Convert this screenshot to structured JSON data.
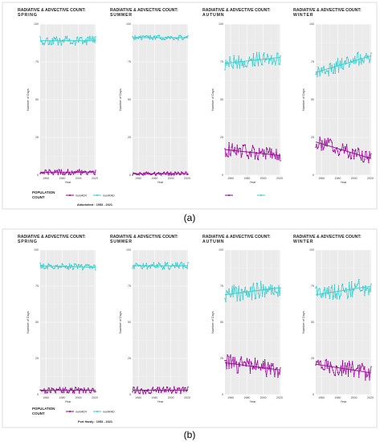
{
  "panels": [
    {
      "caption": "(a)",
      "credit": "Abbotsford : 1953 - 2021",
      "legend_title": [
        "POPULATION",
        "COUNT"
      ],
      "legend_items": [
        {
          "label": "numADV",
          "color": "#990099"
        },
        {
          "label": "numRAD",
          "color": "#33cccc"
        }
      ]
    },
    {
      "caption": "(b)",
      "credit": "Port Hardy : 1953 - 2021",
      "legend_title": [
        "POPULATION",
        "COUNT"
      ],
      "legend_items": [
        {
          "label": "numADV",
          "color": "#990099"
        },
        {
          "label": "numRAD",
          "color": "#33cccc"
        }
      ]
    }
  ],
  "chart_data": [
    {
      "type": "line",
      "panel": 0,
      "title": [
        "RADIATIVE & ADVECTIVE COUNT:",
        "SPRING"
      ],
      "xlabel": "Year",
      "ylabel": "Number of Days",
      "xlim": [
        1953,
        2021
      ],
      "ylim": [
        0,
        100
      ],
      "xticks": [
        1960,
        1980,
        2000,
        2020
      ],
      "yticks": [
        0,
        25,
        50,
        75,
        100
      ],
      "series": [
        {
          "name": "numRAD",
          "color": "#33cccc",
          "mean": 89,
          "trend": [
            89,
            89
          ],
          "amp": 3
        },
        {
          "name": "numADV",
          "color": "#990099",
          "mean": 2,
          "trend": [
            2,
            2
          ],
          "amp": 1.8
        }
      ]
    },
    {
      "type": "line",
      "panel": 0,
      "title": [
        "RADIATIVE & ADVECTIVE COUNT:",
        "SUMMER"
      ],
      "xlabel": "Year",
      "ylabel": "Number of Days",
      "xlim": [
        1953,
        2021
      ],
      "ylim": [
        0,
        100
      ],
      "xticks": [
        1960,
        1980,
        2000,
        2020
      ],
      "yticks": [
        0,
        25,
        50,
        75,
        100
      ],
      "series": [
        {
          "name": "numRAD",
          "color": "#33cccc",
          "mean": 91,
          "trend": [
            91,
            91
          ],
          "amp": 1.5
        },
        {
          "name": "numADV",
          "color": "#990099",
          "mean": 1,
          "trend": [
            1,
            1
          ],
          "amp": 1.2
        }
      ]
    },
    {
      "type": "line",
      "panel": 0,
      "title": [
        "RADIATIVE & ADVECTIVE COUNT:",
        "AUTUMN"
      ],
      "xlabel": "Year",
      "ylabel": "Number of Days",
      "xlim": [
        1953,
        2021
      ],
      "ylim": [
        0,
        100
      ],
      "xticks": [
        1960,
        1980,
        2000,
        2020
      ],
      "yticks": [
        0,
        25,
        50,
        75,
        100
      ],
      "series": [
        {
          "name": "numRAD",
          "color": "#33cccc",
          "mean": 76,
          "trend": [
            74,
            78
          ],
          "amp": 5
        },
        {
          "name": "numADV",
          "color": "#990099",
          "mean": 15,
          "trend": [
            17,
            13
          ],
          "amp": 5
        }
      ]
    },
    {
      "type": "line",
      "panel": 0,
      "title": [
        "RADIATIVE & ADVECTIVE COUNT:",
        "WINTER"
      ],
      "xlabel": "Year",
      "ylabel": "Number of Days",
      "xlim": [
        1953,
        2021
      ],
      "ylim": [
        0,
        100
      ],
      "xticks": [
        1960,
        1980,
        2000,
        2020
      ],
      "yticks": [
        0,
        25,
        50,
        75,
        100
      ],
      "series": [
        {
          "name": "numRAD",
          "color": "#33cccc",
          "mean": 74,
          "trend": [
            68,
            79
          ],
          "amp": 5
        },
        {
          "name": "numADV",
          "color": "#990099",
          "mean": 16,
          "trend": [
            22,
            11
          ],
          "amp": 5
        }
      ]
    },
    {
      "type": "line",
      "panel": 1,
      "title": [
        "RADIATIVE & ADVECTIVE COUNT:",
        "SPRING"
      ],
      "xlabel": "Year",
      "ylabel": "Number of Days",
      "xlim": [
        1953,
        2021
      ],
      "ylim": [
        0,
        100
      ],
      "xticks": [
        1960,
        1980,
        2000,
        2020
      ],
      "yticks": [
        0,
        25,
        50,
        75,
        100
      ],
      "series": [
        {
          "name": "numRAD",
          "color": "#33cccc",
          "mean": 88,
          "trend": [
            89,
            88
          ],
          "amp": 2
        },
        {
          "name": "numADV",
          "color": "#990099",
          "mean": 3,
          "trend": [
            3,
            3
          ],
          "amp": 2
        }
      ]
    },
    {
      "type": "line",
      "panel": 1,
      "title": [
        "RADIATIVE & ADVECTIVE COUNT:",
        "SUMMER"
      ],
      "xlabel": "Year",
      "ylabel": "Number of Days",
      "xlim": [
        1953,
        2021
      ],
      "ylim": [
        0,
        100
      ],
      "xticks": [
        1960,
        1980,
        2000,
        2020
      ],
      "yticks": [
        0,
        25,
        50,
        75,
        100
      ],
      "series": [
        {
          "name": "numRAD",
          "color": "#33cccc",
          "mean": 89,
          "trend": [
            89,
            89
          ],
          "amp": 2.5
        },
        {
          "name": "numADV",
          "color": "#990099",
          "mean": 3,
          "trend": [
            3,
            3
          ],
          "amp": 2.5
        }
      ]
    },
    {
      "type": "line",
      "panel": 1,
      "title": [
        "RADIATIVE & ADVECTIVE COUNT:",
        "AUTUMN"
      ],
      "xlabel": "Year",
      "ylabel": "Number of Days",
      "xlim": [
        1953,
        2021
      ],
      "ylim": [
        0,
        100
      ],
      "xticks": [
        1960,
        1980,
        2000,
        2020
      ],
      "yticks": [
        0,
        25,
        50,
        75,
        100
      ],
      "series": [
        {
          "name": "numRAD",
          "color": "#33cccc",
          "mean": 72,
          "trend": [
            69,
            74
          ],
          "amp": 6
        },
        {
          "name": "numADV",
          "color": "#990099",
          "mean": 19,
          "trend": [
            22,
            17
          ],
          "amp": 6
        }
      ]
    },
    {
      "type": "line",
      "panel": 1,
      "title": [
        "RADIATIVE & ADVECTIVE COUNT:",
        "WINTER"
      ],
      "xlabel": "Year",
      "ylabel": "Number of Days",
      "xlim": [
        1953,
        2021
      ],
      "ylim": [
        0,
        100
      ],
      "xticks": [
        1960,
        1980,
        2000,
        2020
      ],
      "yticks": [
        0,
        25,
        50,
        75,
        100
      ],
      "series": [
        {
          "name": "numRAD",
          "color": "#33cccc",
          "mean": 72,
          "trend": [
            69,
            75
          ],
          "amp": 6
        },
        {
          "name": "numADV",
          "color": "#990099",
          "mean": 18,
          "trend": [
            21,
            15
          ],
          "amp": 6
        }
      ]
    }
  ]
}
